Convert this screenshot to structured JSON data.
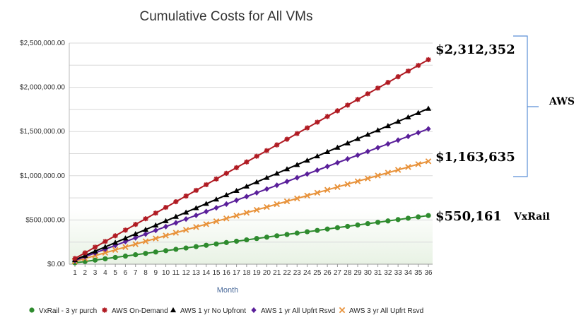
{
  "chart_data": {
    "type": "line",
    "title": "Cumulative Costs for All VMs",
    "xlabel": "Month",
    "ylabel": "",
    "x": [
      1,
      2,
      3,
      4,
      5,
      6,
      7,
      8,
      9,
      10,
      11,
      12,
      13,
      14,
      15,
      16,
      17,
      18,
      19,
      20,
      21,
      22,
      23,
      24,
      25,
      26,
      27,
      28,
      29,
      30,
      31,
      32,
      33,
      34,
      35,
      36
    ],
    "ylim": [
      0,
      2500000
    ],
    "yticks": [
      "$0.00",
      "$500,000.00",
      "$1,000,000.00",
      "$1,500,000.00",
      "$2,000,000.00",
      "$2,500,000.00"
    ],
    "grid": true,
    "legend_position": "bottom",
    "series": [
      {
        "name": "VxRail - 3 yr purch",
        "color": "#2e8b2e",
        "marker": "circle",
        "start": 15282,
        "end": 550161
      },
      {
        "name": "AWS On-Demand",
        "color": "#b01a22",
        "marker": "asterisk",
        "start": 64232,
        "end": 2312352
      },
      {
        "name": "AWS 1 yr No Upfront",
        "color": "#000000",
        "marker": "triangle",
        "start": 49000,
        "end": 1760000
      },
      {
        "name": "AWS 1 yr All Upfrt Rsvd",
        "color": "#5a1f9a",
        "marker": "diamond",
        "start": 42500,
        "end": 1530000
      },
      {
        "name": "AWS 3 yr All Upfrt Rsvd",
        "color": "#e8923a",
        "marker": "x",
        "start": 32323,
        "end": 1163635
      }
    ],
    "annotations": {
      "aws_on_demand_total": "$2,312,352",
      "aws_3yr_total": "$1,163,635",
      "vxrail_total": "$550,161",
      "vxrail_label": "VxRail",
      "aws_bracket_label": "AWS"
    }
  }
}
